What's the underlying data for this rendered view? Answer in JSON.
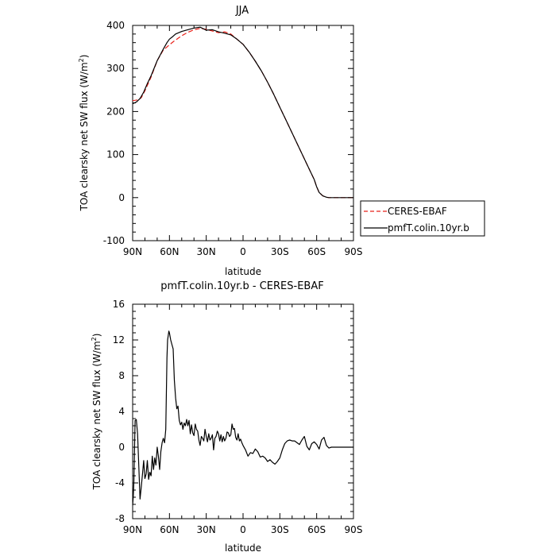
{
  "chart_data": [
    {
      "type": "line",
      "title": "JJA",
      "xlabel": "latitude",
      "ylabel": "TOA clearsky net SW flux (W/m",
      "ylabel_sup": "2",
      "ylabel_end": ")",
      "xlim": [
        90,
        -90
      ],
      "ylim": [
        -100,
        400
      ],
      "xticks": [
        90,
        60,
        30,
        0,
        -30,
        -60,
        -90
      ],
      "xtick_labels": [
        "90N",
        "60N",
        "30N",
        "0",
        "30S",
        "60S",
        "90S"
      ],
      "yticks": [
        -100,
        0,
        100,
        200,
        300,
        400
      ],
      "ytick_labels": [
        "-100",
        "0",
        "100",
        "200",
        "300",
        "400"
      ],
      "legend": "outside-right",
      "series": [
        {
          "name": "CERES-EBAF",
          "color": "#e8221b",
          "dash": "dashed",
          "x": [
            90,
            86,
            83,
            80,
            75,
            70,
            65,
            62,
            60,
            57,
            53,
            50,
            45,
            40,
            35,
            30,
            25,
            20,
            15,
            10,
            5,
            0,
            -5,
            -10,
            -15,
            -20,
            -25,
            -30,
            -35,
            -40,
            -45,
            -50,
            -55,
            -58,
            -60,
            -62,
            -65,
            -68,
            -70,
            -75,
            -80,
            -85,
            -90
          ],
          "y": [
            225,
            227,
            232,
            248,
            280,
            318,
            343,
            350,
            355,
            362,
            370,
            376,
            384,
            390,
            393,
            391,
            387,
            383,
            385,
            380,
            368,
            356,
            338,
            317,
            294,
            268,
            240,
            210,
            180,
            150,
            120,
            90,
            60,
            42,
            25,
            12,
            4,
            1,
            0,
            0,
            0,
            0,
            0
          ]
        },
        {
          "name": "pmfT.colin.10yr.b",
          "color": "#000000",
          "dash": "solid",
          "x": [
            90,
            87,
            84,
            81,
            78,
            75,
            70,
            65,
            62,
            60,
            57,
            55,
            50,
            45,
            40,
            35,
            30,
            25,
            20,
            15,
            10,
            5,
            0,
            -5,
            -10,
            -15,
            -20,
            -25,
            -30,
            -35,
            -40,
            -45,
            -50,
            -55,
            -58,
            -60,
            -62,
            -65,
            -68,
            -70,
            -75,
            -80,
            -85,
            -90
          ],
          "y": [
            218,
            222,
            230,
            245,
            265,
            283,
            318,
            345,
            360,
            368,
            375,
            380,
            386,
            390,
            394,
            396,
            389,
            390,
            385,
            382,
            378,
            368,
            356,
            338,
            317,
            294,
            268,
            240,
            210,
            180,
            150,
            120,
            90,
            60,
            42,
            25,
            12,
            4,
            1,
            0,
            0,
            0,
            0,
            0
          ]
        }
      ]
    },
    {
      "type": "line",
      "title": "pmfT.colin.10yr.b - CERES-EBAF",
      "xlabel": "latitude",
      "ylabel": "TOA clearsky net SW flux (W/m",
      "ylabel_sup": "2",
      "ylabel_end": ")",
      "xlim": [
        90,
        -90
      ],
      "ylim": [
        -8,
        16
      ],
      "xticks": [
        90,
        60,
        30,
        0,
        -30,
        -60,
        -90
      ],
      "xtick_labels": [
        "90N",
        "60N",
        "30N",
        "0",
        "30S",
        "60S",
        "90S"
      ],
      "yticks": [
        -8,
        -4,
        0,
        4,
        8,
        12,
        16
      ],
      "ytick_labels": [
        "-8",
        "-4",
        "0",
        "4",
        "8",
        "12",
        "16"
      ],
      "series": [
        {
          "color": "#000000",
          "x": [
            90,
            89.5,
            89,
            88,
            87,
            86,
            85,
            84,
            83,
            82,
            81,
            80,
            79,
            78,
            77,
            76,
            75,
            74,
            73,
            72,
            71,
            70,
            69,
            68,
            67,
            66,
            65,
            64,
            63,
            62,
            61.5,
            61,
            60.5,
            60,
            59,
            58,
            57,
            56,
            55,
            54,
            53,
            52,
            51,
            50,
            49,
            48,
            47,
            46,
            45,
            44,
            43,
            42,
            41,
            40,
            39,
            38,
            37,
            36,
            35,
            34,
            33,
            32,
            31,
            30,
            29,
            28,
            27,
            26,
            25,
            24,
            23,
            22,
            21,
            20,
            19,
            18,
            17,
            16,
            15,
            14,
            13,
            12,
            11,
            10,
            9,
            8,
            7,
            6,
            5,
            4,
            3,
            2,
            1,
            0,
            -2,
            -4,
            -6,
            -8,
            -10,
            -12,
            -14,
            -16,
            -18,
            -20,
            -22,
            -24,
            -26,
            -28,
            -30,
            -32,
            -34,
            -36,
            -38,
            -40,
            -42,
            -44,
            -46,
            -48,
            -50,
            -52,
            -54,
            -56,
            -58,
            -60,
            -62,
            -64,
            -66,
            -68,
            -70,
            -72,
            -74,
            -76,
            -78,
            -80,
            -85,
            -90
          ],
          "y": [
            -6.5,
            -5.5,
            -4.0,
            3.0,
            3.1,
            1.5,
            -2.0,
            -5.8,
            -4.5,
            -3.0,
            -1.5,
            -3.5,
            -3.0,
            -1.5,
            -3.6,
            -2.8,
            -3.2,
            -1.0,
            -2.5,
            -1.2,
            -2.0,
            0.0,
            -1.0,
            -2.5,
            -0.5,
            0.5,
            1.0,
            0.5,
            2.0,
            10.0,
            12.0,
            12.5,
            13.0,
            12.8,
            12.0,
            11.5,
            11.0,
            7.5,
            5.5,
            4.3,
            4.6,
            3.0,
            2.5,
            2.8,
            2.0,
            2.7,
            2.4,
            3.1,
            2.4,
            3.0,
            1.5,
            2.5,
            1.6,
            1.3,
            2.6,
            2.0,
            1.8,
            0.8,
            0.2,
            1.2,
            1.0,
            0.7,
            2.0,
            1.2,
            0.6,
            1.5,
            0.8,
            1.0,
            1.4,
            -0.3,
            1.0,
            1.2,
            1.8,
            1.5,
            0.7,
            1.4,
            0.6,
            1.2,
            0.7,
            1.0,
            1.7,
            1.6,
            1.2,
            1.4,
            2.6,
            2.0,
            2.1,
            1.1,
            0.8,
            1.5,
            0.7,
            0.9,
            0.5,
            0.2,
            -0.3,
            -1.0,
            -0.6,
            -0.7,
            -0.2,
            -0.5,
            -1.1,
            -1.0,
            -1.2,
            -1.6,
            -1.4,
            -1.7,
            -1.9,
            -1.6,
            -1.2,
            -0.3,
            0.4,
            0.7,
            0.8,
            0.7,
            0.7,
            0.5,
            0.3,
            0.8,
            1.2,
            0.1,
            -0.3,
            0.4,
            0.6,
            0.3,
            -0.2,
            0.8,
            1.1,
            0.2,
            -0.1,
            0,
            0,
            0,
            0,
            0,
            0,
            0
          ]
        }
      ]
    }
  ]
}
